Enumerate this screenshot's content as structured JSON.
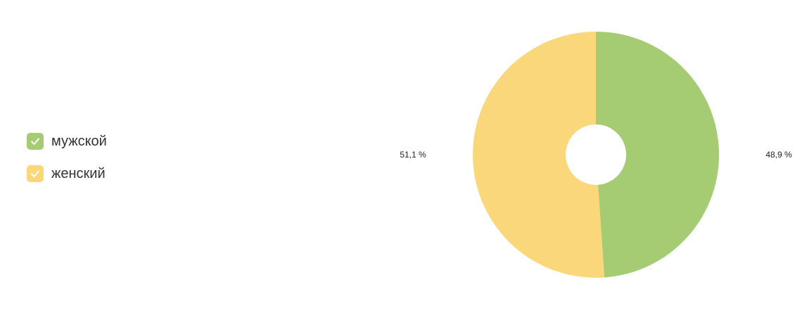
{
  "legend": {
    "items": [
      {
        "label": "мужской",
        "color": "#a5cb73",
        "checked": true
      },
      {
        "label": "женский",
        "color": "#f9d77a",
        "checked": true
      }
    ]
  },
  "chart_data": {
    "type": "pie",
    "donut": true,
    "title": "",
    "categories": [
      "мужской",
      "женский"
    ],
    "values": [
      48.9,
      51.1
    ],
    "labels": [
      "48,9 %",
      "51,1 %"
    ],
    "colors": [
      "#a5cb73",
      "#f9d77a"
    ],
    "legend_position": "left"
  }
}
